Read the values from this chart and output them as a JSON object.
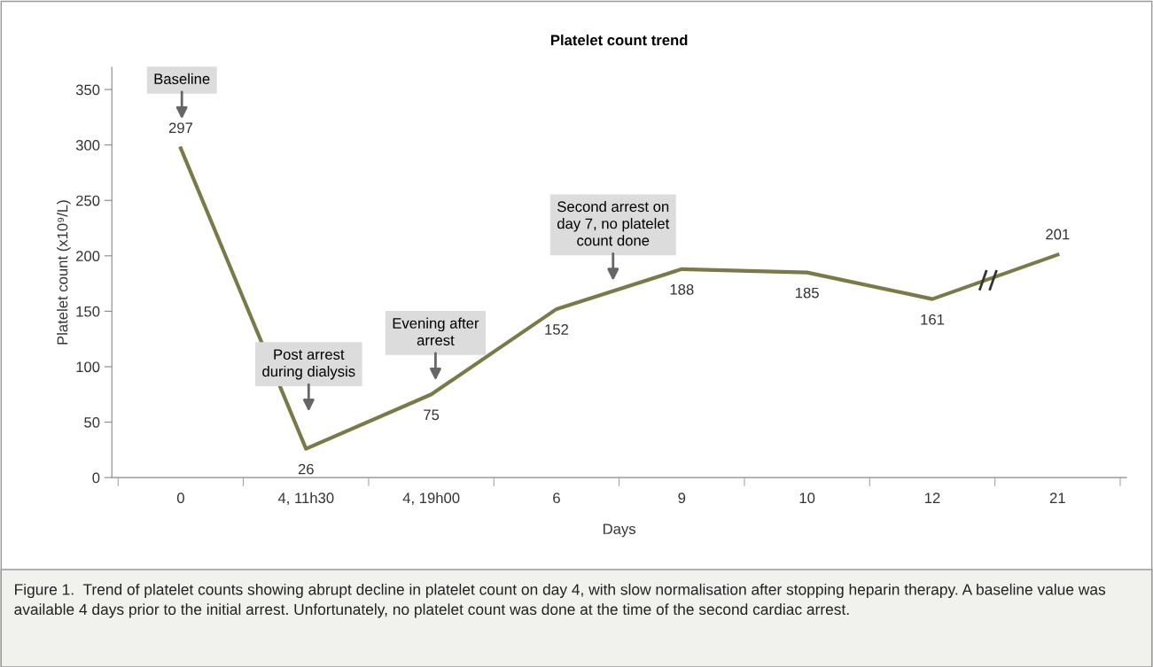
{
  "chart_data": {
    "type": "line",
    "title": "Platelet count trend",
    "xlabel": "Days",
    "ylabel": "Platelet count (x10⁹/L)",
    "categories": [
      "0",
      "4, 11h30",
      "4, 19h00",
      "6",
      "9",
      "10",
      "12",
      "21"
    ],
    "series": [
      {
        "color": "#7a7a48",
        "values": [
          297,
          26,
          75,
          152,
          188,
          185,
          161,
          201
        ]
      }
    ],
    "ylim": [
      0,
      370
    ],
    "yticks": [
      0,
      50,
      100,
      150,
      200,
      250,
      300,
      350
    ],
    "data_labels": true,
    "grid": false,
    "legend": false,
    "marker": "none",
    "line_style": "solid",
    "annotations": [
      "Baseline",
      "Post arrest\nduring dialysis",
      "Evening after\narrest",
      "Second arrest on\nday 7, no platelet\ncount done",
      "Figure 1.  Trend of platelet counts showing abrupt decline in platelet count on day 4, with slow normalisation after stopping heparin therapy. A baseline value was available 4 days prior to the initial arrest. Unfortunately, no platelet count was done at the time of the second cardiac arrest."
    ]
  }
}
